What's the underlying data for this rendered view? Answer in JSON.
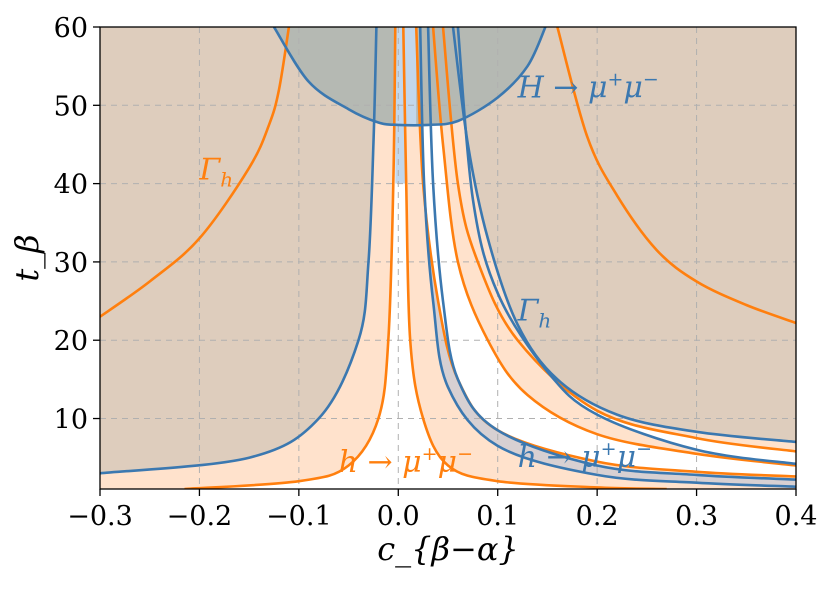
{
  "chart_data": {
    "type": "line",
    "xlabel": "c_{β−α}",
    "ylabel": "t_β",
    "xlim": [
      -0.3,
      0.4
    ],
    "ylim": [
      1,
      60
    ],
    "grid": true,
    "x_ticks": [
      -0.3,
      -0.2,
      -0.1,
      0.0,
      0.1,
      0.2,
      0.3,
      0.4
    ],
    "x_tick_labels": [
      "−0.3",
      "−0.2",
      "−0.1",
      "0.0",
      "0.1",
      "0.2",
      "0.3",
      "0.4"
    ],
    "y_ticks": [
      10,
      20,
      30,
      40,
      50,
      60
    ],
    "y_tick_labels": [
      "10",
      "20",
      "30",
      "40",
      "50",
      "60"
    ],
    "colors": {
      "orange": "#ff7f0e",
      "blue": "#3b78b0",
      "orange_fill": "#ffe2cc",
      "tan_fill": "#decdbd",
      "gray_fill": "#b5b9b3",
      "lightblue_fill": "#c2d7ec",
      "grayblue_fill": "#d7d0d2"
    },
    "series": [
      {
        "label_key": "Gamma_h",
        "color": "orange",
        "x": [
          -0.3,
          -0.25,
          -0.2,
          -0.15,
          -0.13,
          -0.12,
          -0.11
        ],
        "y": [
          23,
          27.5,
          33,
          42,
          47.5,
          52,
          60
        ]
      },
      {
        "label_key": "Gamma_h",
        "color": "orange",
        "x": [
          0.16,
          0.19,
          0.22,
          0.26,
          0.3,
          0.35,
          0.4
        ],
        "y": [
          60,
          46,
          38.5,
          31.5,
          27.5,
          24.5,
          22.2
        ]
      },
      {
        "label_key": "h_mumu",
        "color": "orange",
        "x": [
          -0.215,
          -0.1,
          -0.05,
          -0.02,
          -0.01,
          -0.005,
          -0.003
        ],
        "y": [
          1,
          2,
          4,
          10,
          20,
          40,
          60
        ]
      },
      {
        "label_key": "h_mumu",
        "color": "orange",
        "x": [
          0.005,
          0.008,
          0.012,
          0.025,
          0.05,
          0.1,
          0.2,
          0.27
        ],
        "y": [
          60,
          40,
          20,
          10,
          4,
          2,
          1.2,
          1
        ]
      },
      {
        "label_key": "h_mumu",
        "color": "orange",
        "x": [
          0.018,
          0.025,
          0.04,
          0.06,
          0.1,
          0.2,
          0.3,
          0.4
        ],
        "y": [
          60,
          40,
          25,
          15,
          8.5,
          4.5,
          3.2,
          2.6
        ]
      },
      {
        "label_key": "Gamma_h",
        "color": "orange",
        "x": [
          0.035,
          0.045,
          0.06,
          0.09,
          0.13,
          0.2,
          0.3,
          0.4
        ],
        "y": [
          60,
          45,
          30,
          20,
          13,
          8,
          5.5,
          4
        ]
      },
      {
        "label_key": "Gamma_h",
        "color": "orange",
        "x": [
          0.045,
          0.06,
          0.08,
          0.12,
          0.2,
          0.3,
          0.4
        ],
        "y": [
          60,
          40,
          30,
          20,
          11,
          7.5,
          5.8
        ]
      },
      {
        "label_key": "H_mumu",
        "color": "blue",
        "x": [
          -0.125,
          -0.09,
          -0.05,
          -0.02,
          0.0,
          0.03,
          0.06,
          0.1,
          0.13,
          0.148
        ],
        "y": [
          60,
          53,
          49.5,
          47.8,
          47.5,
          47.5,
          48,
          51,
          55,
          60
        ]
      },
      {
        "label_key": "h_mumu",
        "color": "blue",
        "x": [
          -0.3,
          -0.15,
          -0.08,
          -0.04,
          -0.03,
          -0.025,
          -0.022
        ],
        "y": [
          3,
          5,
          10,
          20,
          30,
          45,
          60
        ]
      },
      {
        "label_key": "h_mumu",
        "color": "blue",
        "x": [
          0.03,
          0.035,
          0.045,
          0.06,
          0.1,
          0.2,
          0.3,
          0.4
        ],
        "y": [
          60,
          40,
          25,
          15,
          8.5,
          4,
          2.8,
          2.2
        ]
      },
      {
        "label_key": "h_mumu",
        "color": "blue",
        "x": [
          0.06,
          0.075,
          0.1,
          0.15,
          0.2,
          0.3,
          0.4
        ],
        "y": [
          60,
          38,
          26,
          16,
          10.5,
          6,
          4.2
        ]
      },
      {
        "label_key": "Gamma_h",
        "color": "blue",
        "x": [
          0.022,
          0.026,
          0.035,
          0.05,
          0.1,
          0.2,
          0.3,
          0.4
        ],
        "y": [
          60,
          40,
          25,
          14,
          6.5,
          2.8,
          1.8,
          1.3
        ]
      },
      {
        "label_key": "Gamma_h",
        "color": "blue",
        "x": [
          0.055,
          0.07,
          0.09,
          0.12,
          0.16,
          0.22,
          0.3,
          0.4
        ],
        "y": [
          60,
          45,
          33,
          22,
          15,
          10.5,
          8.3,
          7
        ]
      }
    ],
    "annotations": [
      {
        "key": "H_mumu",
        "color": "blue",
        "x": 0.12,
        "y": 51,
        "main": "H",
        "arrow": " → ",
        "base": "μ",
        "sup1": "+",
        "base2": "μ",
        "sup2": "−"
      },
      {
        "key": "Gamma_h_left",
        "color": "orange",
        "x": -0.2,
        "y": 40.5,
        "main": "Γ",
        "sub": "h"
      },
      {
        "key": "Gamma_h_right",
        "color": "blue",
        "x": 0.12,
        "y": 22.5,
        "main": "Γ",
        "sub": "h"
      },
      {
        "key": "h_mumu_orange",
        "color": "orange",
        "x": -0.06,
        "y": 3.2,
        "main": "h",
        "arrow": " → ",
        "base": "μ",
        "sup1": "+",
        "base2": "μ",
        "sup2": "−"
      },
      {
        "key": "h_mumu_blue",
        "color": "blue",
        "x": 0.12,
        "y": 3.8,
        "main": "h",
        "arrow": " → ",
        "base": "μ",
        "sup1": "+",
        "base2": "μ",
        "sup2": "−"
      }
    ]
  }
}
